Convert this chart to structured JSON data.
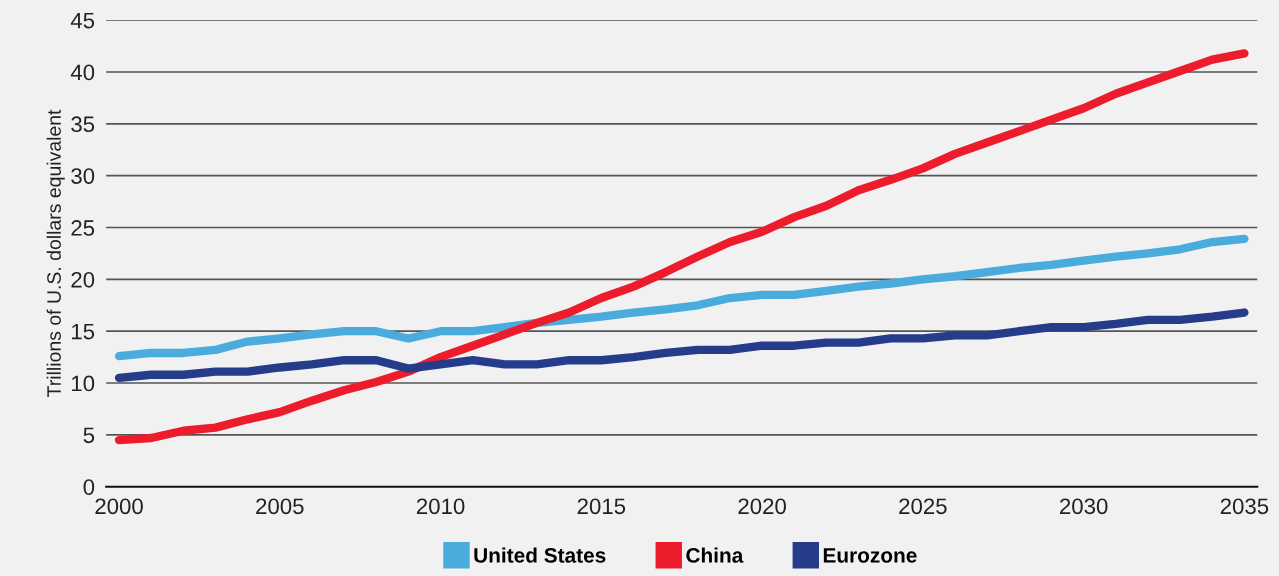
{
  "chart_data": {
    "type": "line",
    "ylabel": "Trillions of U.S. dollars equivalent",
    "x": [
      2000,
      2001,
      2002,
      2003,
      2004,
      2005,
      2006,
      2007,
      2008,
      2009,
      2010,
      2011,
      2012,
      2013,
      2014,
      2015,
      2016,
      2017,
      2018,
      2019,
      2020,
      2021,
      2022,
      2023,
      2024,
      2025,
      2026,
      2027,
      2028,
      2029,
      2030,
      2031,
      2032,
      2033,
      2034,
      2035
    ],
    "series": [
      {
        "name": "United States",
        "color": "#4aacdc",
        "values": [
          12.6,
          12.9,
          12.9,
          13.2,
          14.0,
          14.3,
          14.7,
          15.0,
          15.0,
          14.3,
          15.0,
          15.0,
          15.4,
          15.8,
          16.1,
          16.4,
          16.8,
          17.1,
          17.5,
          18.2,
          18.5,
          18.5,
          18.9,
          19.3,
          19.6,
          20.0,
          20.3,
          20.7,
          21.1,
          21.4,
          21.8,
          22.2,
          22.5,
          22.9,
          23.6,
          23.9
        ]
      },
      {
        "name": "China",
        "color": "#ed1c2c",
        "values": [
          4.5,
          4.7,
          5.4,
          5.7,
          6.5,
          7.2,
          8.3,
          9.3,
          10.1,
          11.1,
          12.5,
          13.6,
          14.7,
          15.8,
          16.8,
          18.2,
          19.3,
          20.7,
          22.2,
          23.6,
          24.6,
          26.0,
          27.1,
          28.6,
          29.6,
          30.7,
          32.1,
          33.2,
          34.3,
          35.4,
          36.5,
          37.9,
          39.0,
          40.1,
          41.2,
          41.8
        ]
      },
      {
        "name": "Eurozone",
        "color": "#253c8a",
        "values": [
          10.5,
          10.8,
          10.8,
          11.1,
          11.1,
          11.5,
          11.8,
          12.2,
          12.2,
          11.4,
          11.8,
          12.2,
          11.8,
          11.8,
          12.2,
          12.2,
          12.5,
          12.9,
          13.2,
          13.2,
          13.6,
          13.6,
          13.9,
          13.9,
          14.3,
          14.3,
          14.6,
          14.6,
          15.0,
          15.4,
          15.4,
          15.7,
          16.1,
          16.1,
          16.4,
          16.8
        ]
      }
    ],
    "xlim": [
      1999.6,
      2035.4
    ],
    "xticks": [
      2000,
      2005,
      2010,
      2015,
      2020,
      2025,
      2030,
      2035
    ],
    "ylim": [
      0,
      45
    ],
    "yticks": [
      0,
      5,
      10,
      15,
      20,
      25,
      30,
      35,
      40,
      45
    ],
    "grid": "y",
    "legend": "bottom",
    "marker": "none",
    "line_style": "solid"
  }
}
